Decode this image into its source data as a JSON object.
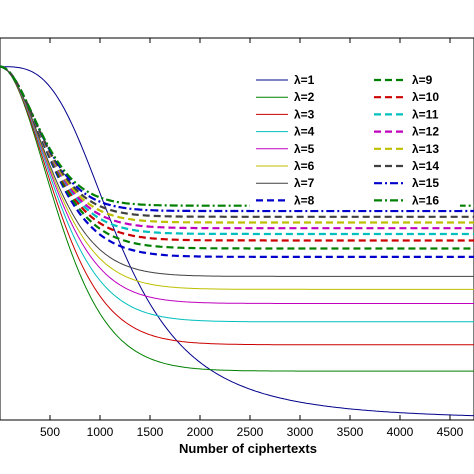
{
  "chart_data": {
    "type": "line",
    "title": "",
    "xlabel": "Number of ciphertexts",
    "ylabel": "",
    "xlim": [
      0,
      4740
    ],
    "ylim": [
      0,
      1
    ],
    "grid": false,
    "legend_position": "top-right",
    "x_ticks": [
      500,
      1000,
      1500,
      2000,
      2500,
      3000,
      3500,
      4000,
      4500
    ],
    "x_tick_labels": [
      "500",
      "1000",
      "1500",
      "2000",
      "2500",
      "3000",
      "3500",
      "4000",
      "4500"
    ],
    "series": [
      {
        "name": "λ=1",
        "color": "#00008b",
        "dash": "solid",
        "plateau": 0.0
      },
      {
        "name": "λ=2",
        "color": "#008000",
        "dash": "solid",
        "plateau": 0.128
      },
      {
        "name": "λ=3",
        "color": "#cc0000",
        "dash": "solid",
        "plateau": 0.197
      },
      {
        "name": "λ=4",
        "color": "#00bfbf",
        "dash": "solid",
        "plateau": 0.257
      },
      {
        "name": "λ=5",
        "color": "#bf00bf",
        "dash": "solid",
        "plateau": 0.305
      },
      {
        "name": "λ=6",
        "color": "#bfbf00",
        "dash": "solid",
        "plateau": 0.342
      },
      {
        "name": "λ=7",
        "color": "#404040",
        "dash": "solid",
        "plateau": 0.376
      },
      {
        "name": "λ=8",
        "color": "#0000cc",
        "dash": "dash",
        "plateau": 0.427
      },
      {
        "name": "λ=9",
        "color": "#008000",
        "dash": "dash",
        "plateau": 0.449
      },
      {
        "name": "λ=10",
        "color": "#cc0000",
        "dash": "dash",
        "plateau": 0.47
      },
      {
        "name": "λ=11",
        "color": "#00bfbf",
        "dash": "dash",
        "plateau": 0.487
      },
      {
        "name": "λ=12",
        "color": "#bf00bf",
        "dash": "dash",
        "plateau": 0.502
      },
      {
        "name": "λ=13",
        "color": "#bfbf00",
        "dash": "dash",
        "plateau": 0.517
      },
      {
        "name": "λ=14",
        "color": "#404040",
        "dash": "dash",
        "plateau": 0.532
      },
      {
        "name": "λ=15",
        "color": "#0000cc",
        "dash": "dashdot",
        "plateau": 0.547
      },
      {
        "name": "λ=16",
        "color": "#008000",
        "dash": "dashdot",
        "plateau": 0.561
      }
    ]
  }
}
